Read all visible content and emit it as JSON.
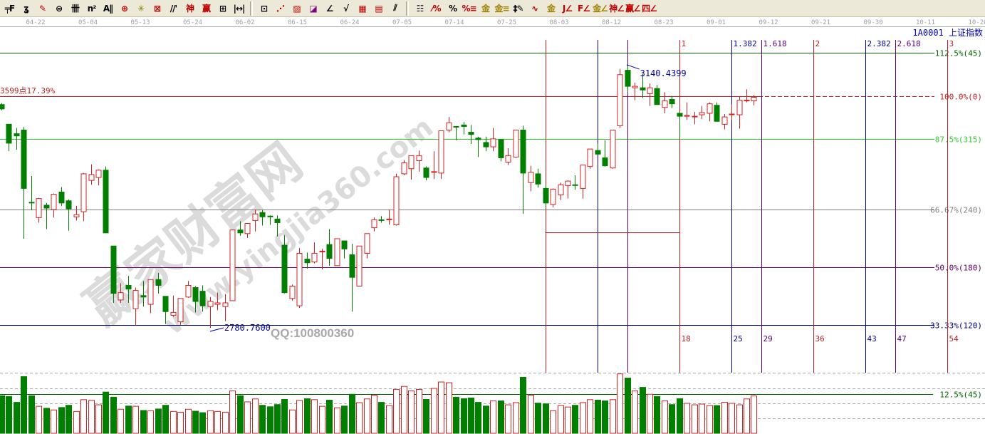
{
  "toolbar": {
    "groups": [
      [
        {
          "name": "fibonacci-tool-icon",
          "glyph": "╤F",
          "color": "#000"
        },
        {
          "name": "spiral-tool-icon",
          "glyph": "ʓ",
          "color": "#000"
        },
        {
          "name": "eraser-pen-icon",
          "glyph": "✎",
          "color": "#c00000"
        },
        {
          "name": "circle-grid-icon",
          "glyph": "⊜",
          "color": "#000"
        },
        {
          "name": "parallel-vertical-lines-icon",
          "glyph": "卌",
          "color": "#000"
        },
        {
          "name": "n-squared-icon",
          "glyph": "n²",
          "color": "#000"
        },
        {
          "name": "andrews-pitchfork-icon",
          "glyph": "A‖",
          "color": "#000"
        },
        {
          "name": "crosshair-circle-icon",
          "glyph": "⊕",
          "color": "#c00000"
        },
        {
          "name": "compass-rose-icon",
          "glyph": "✳",
          "color": "#808000"
        },
        {
          "name": "box-cross-icon",
          "glyph": "⊠",
          "color": "#c00000"
        },
        {
          "name": "parallel-channel-icon",
          "glyph": "//'",
          "color": "#000"
        },
        {
          "name": "shen-tool-icon",
          "glyph": "神",
          "color": "#c00000"
        },
        {
          "name": "ying-tool-icon",
          "glyph": "赢",
          "color": "#c00000"
        },
        {
          "name": "time-grid-icon",
          "glyph": "⊞",
          "color": "#000"
        },
        {
          "name": "measure-width-icon",
          "glyph": "|↔|",
          "color": "#000"
        }
      ],
      [
        {
          "name": "box-tool-icon",
          "glyph": "⊡",
          "color": "#000"
        },
        {
          "name": "gann-fan-icon",
          "glyph": "⋰",
          "color": "#c00000"
        },
        {
          "name": "gann-box-icon",
          "glyph": "▨",
          "color": "#c00000"
        },
        {
          "name": "gann-square-icon",
          "glyph": "◪",
          "color": "#800080"
        },
        {
          "name": "angle-fan-icon",
          "glyph": "∠",
          "color": "#000"
        },
        {
          "name": "wave-v-icon",
          "glyph": "√",
          "color": "#000"
        },
        {
          "name": "grid-red-icon",
          "glyph": "▦",
          "color": "#c00000"
        },
        {
          "name": "grid-arrow-icon",
          "glyph": "▤",
          "color": "#c00000"
        },
        {
          "name": "parallel-lines-icon",
          "glyph": "⫽",
          "color": "#000"
        }
      ],
      [
        {
          "name": "ruled-list-icon",
          "glyph": "☷",
          "color": "#000"
        },
        {
          "name": "percent-red-icon",
          "glyph": "⁄%",
          "color": "#c00000"
        },
        {
          "name": "percent-icon",
          "glyph": "%",
          "color": "#000"
        },
        {
          "name": "percent-lines-icon",
          "glyph": "%≡",
          "color": "#c00000"
        },
        {
          "name": "gold-circle-icon",
          "glyph": "金",
          "color": "#a08000"
        },
        {
          "name": "gold-lines-icon",
          "glyph": "金≡",
          "color": "#a08000"
        },
        {
          "name": "pen-marker-icon",
          "glyph": "‡✎",
          "color": "#000"
        },
        {
          "name": "wave-box-icon",
          "glyph": "∿",
          "color": "#c00000"
        },
        {
          "name": "gold-underline-icon",
          "glyph": "金",
          "color": "#a08000"
        },
        {
          "name": "j-angle-icon",
          "glyph": "J∠",
          "color": "#c00000"
        },
        {
          "name": "f-angle-icon",
          "glyph": "F∠",
          "color": "#c00000"
        },
        {
          "name": "gold-angle-icon",
          "glyph": "金∠",
          "color": "#a08000"
        },
        {
          "name": "shen-angle-icon",
          "glyph": "神∠",
          "color": "#c00000"
        },
        {
          "name": "ying-angle-icon",
          "glyph": "赢∠",
          "color": "#c00000"
        },
        {
          "name": "four-angle-icon",
          "glyph": "四∠",
          "color": "#c00000"
        }
      ]
    ]
  },
  "header": {
    "symbol": "1A0001",
    "name": "上证指数"
  },
  "watermark": {
    "site_name": "赢家财富网",
    "url": "www.yingjia360.com",
    "qq": "QQ:100800360"
  },
  "colors": {
    "up": "#d42020",
    "down": "#007f00",
    "date_text": "#a0a0a0",
    "header_text": "#0000c0"
  },
  "chart_data": {
    "type": "candlestick",
    "x_tick_labels": [
      "04-22",
      "05-04",
      "05-13",
      "05-24",
      "06-02",
      "06-15",
      "06-24",
      "07-05",
      "07-14",
      "07-25",
      "08-03",
      "08-12",
      "08-23",
      "09-01",
      "09-12",
      "09-21",
      "09-30",
      "10-11",
      "10-20"
    ],
    "ohlc_order": [
      "open",
      "high",
      "low",
      "close"
    ],
    "candles": [
      [
        3087,
        3089,
        3079,
        3081
      ],
      [
        3060,
        3060,
        3023,
        3034
      ],
      [
        3047,
        3055,
        3025,
        3044
      ],
      [
        3052,
        3056,
        2903,
        2972
      ],
      [
        2953,
        2989,
        2942,
        2952
      ],
      [
        2932,
        2959,
        2925,
        2958
      ],
      [
        2949,
        2952,
        2916,
        2945
      ],
      [
        2943,
        2965,
        2932,
        2964
      ],
      [
        2967,
        2974,
        2948,
        2952
      ],
      [
        2955,
        2957,
        2914,
        2944
      ],
      [
        2933,
        2948,
        2928,
        2936
      ],
      [
        2940,
        2993,
        2927,
        2992
      ],
      [
        2983,
        3005,
        2977,
        2991
      ],
      [
        2987,
        2998,
        2976,
        2997
      ],
      [
        2997,
        3002,
        2911,
        2911
      ],
      [
        2893,
        2893,
        2815,
        2828
      ],
      [
        2819,
        2842,
        2815,
        2829
      ],
      [
        2839,
        2852,
        2815,
        2834
      ],
      [
        2807,
        2836,
        2784,
        2832
      ],
      [
        2825,
        2845,
        2810,
        2823
      ],
      [
        2813,
        2847,
        2801,
        2847
      ],
      [
        2847,
        2856,
        2828,
        2839
      ],
      [
        2824,
        2824,
        2786,
        2803
      ],
      [
        2798,
        2825,
        2796,
        2802
      ],
      [
        2789,
        2821,
        2785,
        2821
      ],
      [
        2823,
        2845,
        2822,
        2839
      ],
      [
        2836,
        2838,
        2802,
        2817
      ],
      [
        2831,
        2839,
        2803,
        2811
      ],
      [
        2810,
        2823,
        2780.76,
        2817
      ],
      [
        2813,
        2829,
        2805,
        2815
      ],
      [
        2810,
        2827,
        2790,
        2815
      ],
      [
        2818,
        2915,
        2818,
        2915
      ],
      [
        2915,
        2927,
        2907,
        2911
      ],
      [
        2910,
        2924,
        2904,
        2924
      ],
      [
        2928,
        2943,
        2913,
        2937
      ],
      [
        2939,
        2943,
        2921,
        2933
      ],
      [
        2934,
        2935,
        2922,
        2933
      ],
      [
        2930,
        2935,
        2906,
        2925
      ],
      [
        2894,
        2908,
        2828,
        2829
      ],
      [
        2821,
        2840,
        2818,
        2838
      ],
      [
        2811,
        2890,
        2808,
        2883
      ],
      [
        2875,
        2884,
        2862,
        2870
      ],
      [
        2871,
        2898,
        2869,
        2883
      ],
      [
        2885,
        2889,
        2861,
        2886
      ],
      [
        2895,
        2916,
        2866,
        2876
      ],
      [
        2866,
        2903,
        2866,
        2903
      ],
      [
        2900,
        2900,
        2876,
        2889
      ],
      [
        2881,
        2896,
        2803,
        2850
      ],
      [
        2838,
        2893,
        2838,
        2893
      ],
      [
        2883,
        2910,
        2876,
        2910
      ],
      [
        2918,
        2932,
        2913,
        2929
      ],
      [
        2929,
        2934,
        2925,
        2928
      ],
      [
        2929,
        2943,
        2922,
        2930
      ],
      [
        2922,
        2992,
        2921,
        2988
      ],
      [
        2992,
        3011,
        2990,
        3007
      ],
      [
        2999,
        3017,
        2984,
        3017
      ],
      [
        3010,
        3024,
        2995,
        3017
      ],
      [
        3000,
        3002,
        2983,
        2987
      ],
      [
        2994,
        3023,
        2985,
        2995
      ],
      [
        2993,
        3051,
        2985,
        3051
      ],
      [
        3052,
        3070,
        3049,
        3062
      ],
      [
        3057,
        3057,
        3038,
        3056
      ],
      [
        3059,
        3063,
        3046,
        3057
      ],
      [
        3049,
        3059,
        3033,
        3046
      ],
      [
        3041,
        3043,
        3015,
        3039
      ],
      [
        3035,
        3043,
        3023,
        3029
      ],
      [
        3029,
        3055,
        3023,
        3040
      ],
      [
        3039,
        3039,
        3009,
        3014
      ],
      [
        3008,
        3027,
        3004,
        3017
      ],
      [
        3015,
        3052,
        3014,
        3052
      ],
      [
        3052,
        3058,
        2937,
        2993
      ],
      [
        2980,
        3003,
        2968,
        2994
      ],
      [
        2992,
        2999,
        2973,
        2978
      ],
      [
        2972,
        2977,
        2947,
        2952
      ],
      [
        2950,
        2972,
        2946,
        2971
      ],
      [
        2963,
        2980,
        2956,
        2977
      ],
      [
        2976,
        2983,
        2958,
        2982
      ],
      [
        2977,
        2990,
        2970,
        2976
      ],
      [
        2972,
        3004,
        2958,
        3004
      ],
      [
        3002,
        3026,
        2999,
        3026
      ],
      [
        3024,
        3033,
        3018,
        3019
      ],
      [
        3014,
        3038,
        3002,
        3003
      ],
      [
        3000,
        3052,
        2999,
        3052
      ],
      [
        3058,
        3136,
        3055,
        3128
      ],
      [
        3134,
        3140.44,
        3104,
        3112
      ],
      [
        3110,
        3117,
        3093,
        3112
      ],
      [
        3110,
        3129,
        3096,
        3107
      ],
      [
        3102,
        3116,
        3085,
        3110
      ],
      [
        3109,
        3114,
        3087,
        3087
      ],
      [
        3083,
        3104,
        3075,
        3092
      ],
      [
        3094,
        3099,
        3082,
        3088
      ],
      [
        3075,
        3075,
        3042,
        3071
      ],
      [
        3071,
        3090,
        3066,
        3072
      ],
      [
        3070,
        3077,
        3060,
        3071
      ],
      [
        3073,
        3085,
        3067,
        3076
      ],
      [
        3075,
        3090,
        3064,
        3088
      ],
      [
        3086,
        3090,
        3064,
        3064
      ],
      [
        3060,
        3074,
        3053,
        3070
      ],
      [
        3073,
        3087,
        3066,
        3074
      ],
      [
        3073,
        3098,
        3054,
        3093
      ],
      [
        3092,
        3108,
        3090,
        3093
      ],
      [
        3092,
        3100,
        3086,
        3097
      ]
    ],
    "volume_relative": [
      153,
      150,
      126,
      231,
      153,
      110,
      102,
      95,
      105,
      114,
      89,
      137,
      134,
      116,
      168,
      147,
      98,
      111,
      110,
      93,
      92,
      99,
      114,
      89,
      86,
      98,
      90,
      84,
      92,
      89,
      86,
      173,
      153,
      128,
      140,
      114,
      108,
      117,
      138,
      95,
      134,
      141,
      137,
      110,
      135,
      104,
      111,
      159,
      125,
      140,
      155,
      126,
      113,
      179,
      191,
      173,
      179,
      138,
      183,
      209,
      206,
      147,
      141,
      144,
      126,
      111,
      132,
      132,
      116,
      125,
      228,
      155,
      123,
      120,
      92,
      113,
      107,
      114,
      125,
      137,
      135,
      132,
      137,
      242,
      225,
      173,
      187,
      159,
      150,
      132,
      117,
      141,
      122,
      116,
      119,
      113,
      113,
      126,
      122,
      116,
      140,
      152,
      119
    ],
    "annotations": {
      "high": {
        "candle": 85,
        "value": 3140.44,
        "label": "3140.4399"
      },
      "low": {
        "candle": 29,
        "value": 2780.76,
        "label": "2780.7600"
      },
      "left_line_label": "3599点17.39%"
    },
    "fib_levels": [
      {
        "price": 3158.0,
        "label": "112.5%(45)",
        "color": "#006400"
      },
      {
        "price": 3098.5,
        "label": "100.0%(0)",
        "color": "#c02020"
      },
      {
        "price": 3039.8,
        "label": "87.5%(315)",
        "color": "#33cc33"
      },
      {
        "price": 2943.0,
        "label": "66.67%(240)",
        "color": "#808080"
      },
      {
        "price": 2863.9,
        "label": "50.0%(180)",
        "color": "#660066"
      },
      {
        "price": 2784.7,
        "label": "33.33%(120)",
        "color": "#000080"
      }
    ],
    "time_cycles": {
      "start_candle": 74,
      "range_line_price": 2912,
      "lines": [
        {
          "offset": 0,
          "color": "#c02020",
          "top": "",
          "bottom": ""
        },
        {
          "offset": 7,
          "color": "#0000a0",
          "top": "",
          "bottom": ""
        },
        {
          "offset": 11,
          "color": "#600080",
          "top": "",
          "bottom": ""
        },
        {
          "offset": 18,
          "color": "#c02020",
          "top": "1",
          "bottom": "18"
        },
        {
          "offset": 25,
          "color": "#0000a0",
          "top": "1.382",
          "bottom": "25"
        },
        {
          "offset": 29,
          "color": "#600080",
          "top": "1.618",
          "bottom": "29"
        },
        {
          "offset": 36,
          "color": "#c02020",
          "top": "2",
          "bottom": "36"
        },
        {
          "offset": 43,
          "color": "#0000a0",
          "top": "2.382",
          "bottom": "43"
        },
        {
          "offset": 47,
          "color": "#600080",
          "top": "2.618",
          "bottom": "47"
        },
        {
          "offset": 54,
          "color": "#c02020",
          "top": "3",
          "bottom": "54"
        }
      ]
    },
    "volume_level": {
      "label": "12.5%(45)",
      "value": 159,
      "color": "#006400"
    }
  }
}
